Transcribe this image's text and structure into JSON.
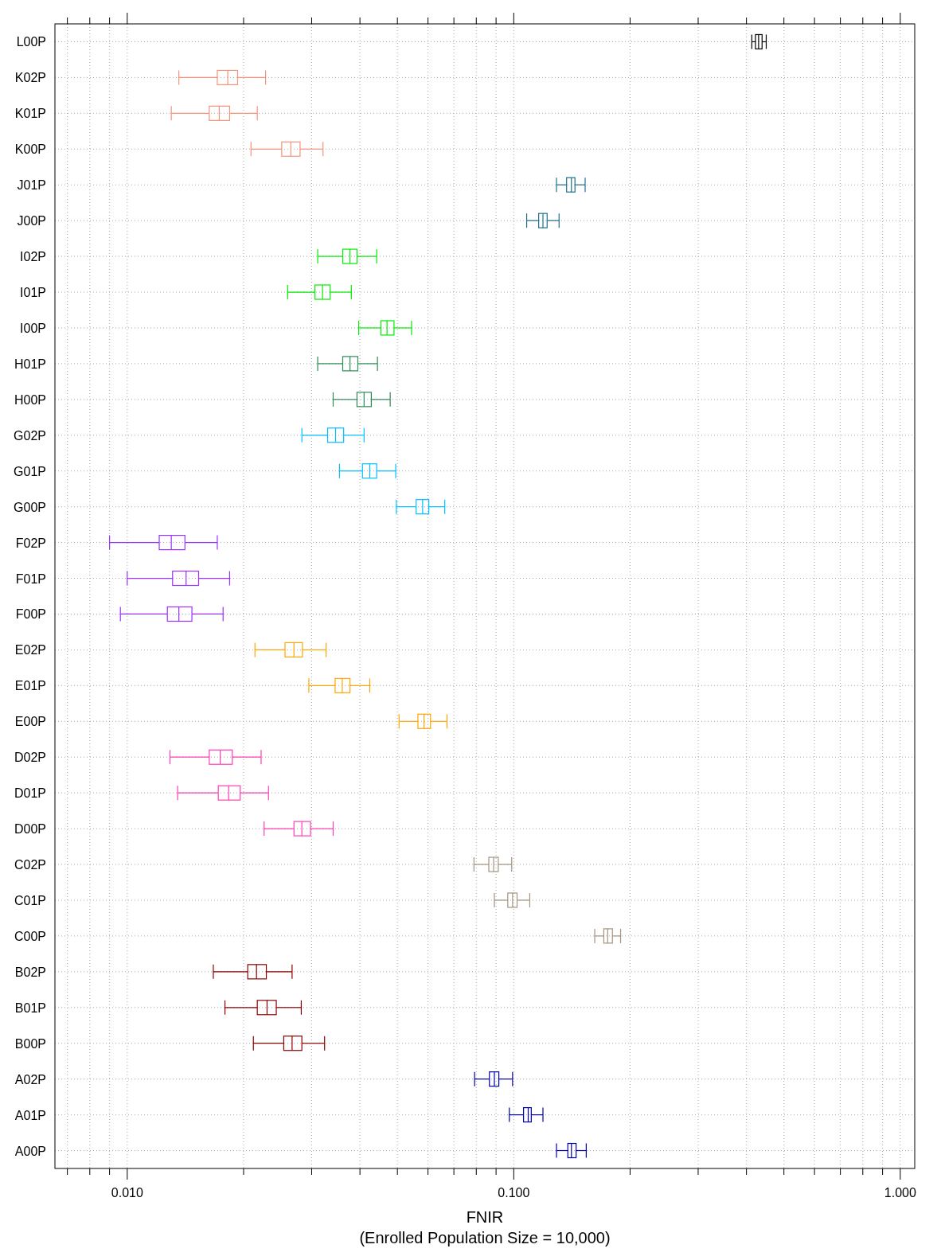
{
  "chart_data": {
    "type": "box",
    "orientation": "horizontal",
    "log": "x",
    "grid": true,
    "xlabel": "FNIR\n(Enrolled Population Size = 10,000)",
    "xlim": [
      0.0065,
      1.09
    ],
    "xticks": [
      {
        "value": 0.007,
        "label": null
      },
      {
        "value": 0.008,
        "label": null
      },
      {
        "value": 0.009,
        "label": null
      },
      {
        "value": 0.01,
        "label": "0.010"
      },
      {
        "value": 0.02,
        "label": null
      },
      {
        "value": 0.03,
        "label": null
      },
      {
        "value": 0.04,
        "label": null
      },
      {
        "value": 0.05,
        "label": null
      },
      {
        "value": 0.06,
        "label": null
      },
      {
        "value": 0.07,
        "label": null
      },
      {
        "value": 0.08,
        "label": null
      },
      {
        "value": 0.09,
        "label": null
      },
      {
        "value": 0.1,
        "label": "0.100"
      },
      {
        "value": 0.2,
        "label": null
      },
      {
        "value": 0.3,
        "label": null
      },
      {
        "value": 0.4,
        "label": null
      },
      {
        "value": 0.5,
        "label": null
      },
      {
        "value": 0.6,
        "label": null
      },
      {
        "value": 0.7,
        "label": null
      },
      {
        "value": 0.8,
        "label": null
      },
      {
        "value": 0.9,
        "label": null
      },
      {
        "value": 1,
        "label": "1.000"
      }
    ],
    "categories": [
      "L00P",
      "K02P",
      "K01P",
      "K00P",
      "J01P",
      "J00P",
      "I02P",
      "I01P",
      "I00P",
      "H01P",
      "H00P",
      "G02P",
      "G01P",
      "G00P",
      "F02P",
      "F01P",
      "F00P",
      "E02P",
      "E01P",
      "E00P",
      "D02P",
      "D01P",
      "D00P",
      "C02P",
      "C01P",
      "C00P",
      "B02P",
      "B01P",
      "B00P",
      "A02P",
      "A01P",
      "A00P"
    ],
    "colors": [
      "#000000",
      "#f4937a",
      "#f4937a",
      "#f4937a",
      "#1f6e8c",
      "#1f6e8c",
      "#00ee00",
      "#00ee00",
      "#00ee00",
      "#2e8b57",
      "#2e8b57",
      "#00bfff",
      "#00bfff",
      "#00bfff",
      "#9b30ff",
      "#9b30ff",
      "#9b30ff",
      "#ffa500",
      "#ffa500",
      "#ffa500",
      "#ff3eb5",
      "#ff3eb5",
      "#ff3eb5",
      "#a39480",
      "#a39480",
      "#a39480",
      "#8b0000",
      "#8b0000",
      "#8b0000",
      "#0000aa",
      "#0000aa",
      "#0000aa"
    ],
    "boxes": [
      {
        "low": 0.413,
        "q1": 0.422,
        "median": 0.43,
        "q3": 0.439,
        "high": 0.45
      },
      {
        "low": 0.0136,
        "q1": 0.0171,
        "median": 0.0182,
        "q3": 0.0193,
        "high": 0.0228
      },
      {
        "low": 0.013,
        "q1": 0.0163,
        "median": 0.0173,
        "q3": 0.0184,
        "high": 0.0217
      },
      {
        "low": 0.0209,
        "q1": 0.0251,
        "median": 0.0265,
        "q3": 0.028,
        "high": 0.0321
      },
      {
        "low": 0.129,
        "q1": 0.137,
        "median": 0.141,
        "q3": 0.144,
        "high": 0.153
      },
      {
        "low": 0.108,
        "q1": 0.116,
        "median": 0.119,
        "q3": 0.122,
        "high": 0.131
      },
      {
        "low": 0.0311,
        "q1": 0.0361,
        "median": 0.0377,
        "q3": 0.0393,
        "high": 0.0442
      },
      {
        "low": 0.026,
        "q1": 0.0306,
        "median": 0.032,
        "q3": 0.0335,
        "high": 0.038
      },
      {
        "low": 0.0397,
        "q1": 0.0453,
        "median": 0.047,
        "q3": 0.049,
        "high": 0.0544
      },
      {
        "low": 0.0311,
        "q1": 0.0361,
        "median": 0.0377,
        "q3": 0.0395,
        "high": 0.0444
      },
      {
        "low": 0.0341,
        "q1": 0.0393,
        "median": 0.041,
        "q3": 0.0428,
        "high": 0.0479
      },
      {
        "low": 0.0283,
        "q1": 0.033,
        "median": 0.0346,
        "q3": 0.0363,
        "high": 0.041
      },
      {
        "low": 0.0354,
        "q1": 0.0406,
        "median": 0.0424,
        "q3": 0.0442,
        "high": 0.0495
      },
      {
        "low": 0.0497,
        "q1": 0.0559,
        "median": 0.0581,
        "q3": 0.0603,
        "high": 0.0663
      },
      {
        "low": 0.009,
        "q1": 0.0121,
        "median": 0.013,
        "q3": 0.0141,
        "high": 0.0171
      },
      {
        "low": 0.01,
        "q1": 0.0131,
        "median": 0.0142,
        "q3": 0.0153,
        "high": 0.0184
      },
      {
        "low": 0.0096,
        "q1": 0.0127,
        "median": 0.0136,
        "q3": 0.0147,
        "high": 0.0177
      },
      {
        "low": 0.0214,
        "q1": 0.0256,
        "median": 0.027,
        "q3": 0.0284,
        "high": 0.0327
      },
      {
        "low": 0.0295,
        "q1": 0.0345,
        "median": 0.036,
        "q3": 0.0377,
        "high": 0.0424
      },
      {
        "low": 0.0505,
        "q1": 0.0565,
        "median": 0.0586,
        "q3": 0.0609,
        "high": 0.0672
      },
      {
        "low": 0.0129,
        "q1": 0.0163,
        "median": 0.0174,
        "q3": 0.0187,
        "high": 0.0222
      },
      {
        "low": 0.0135,
        "q1": 0.0172,
        "median": 0.0183,
        "q3": 0.0196,
        "high": 0.0232
      },
      {
        "low": 0.0226,
        "q1": 0.027,
        "median": 0.0283,
        "q3": 0.0298,
        "high": 0.0341
      },
      {
        "low": 0.0789,
        "q1": 0.0862,
        "median": 0.0887,
        "q3": 0.0912,
        "high": 0.0988
      },
      {
        "low": 0.0891,
        "q1": 0.0965,
        "median": 0.0993,
        "q3": 0.102,
        "high": 0.11
      },
      {
        "low": 0.162,
        "q1": 0.171,
        "median": 0.175,
        "q3": 0.18,
        "high": 0.189
      },
      {
        "low": 0.0167,
        "q1": 0.0205,
        "median": 0.0216,
        "q3": 0.0229,
        "high": 0.0267
      },
      {
        "low": 0.0179,
        "q1": 0.0217,
        "median": 0.023,
        "q3": 0.0243,
        "high": 0.0282
      },
      {
        "low": 0.0212,
        "q1": 0.0254,
        "median": 0.0267,
        "q3": 0.0283,
        "high": 0.0324
      },
      {
        "low": 0.0792,
        "q1": 0.0865,
        "median": 0.0891,
        "q3": 0.0915,
        "high": 0.0993
      },
      {
        "low": 0.0974,
        "q1": 0.106,
        "median": 0.109,
        "q3": 0.111,
        "high": 0.119
      },
      {
        "low": 0.129,
        "q1": 0.138,
        "median": 0.141,
        "q3": 0.145,
        "high": 0.154
      }
    ]
  }
}
